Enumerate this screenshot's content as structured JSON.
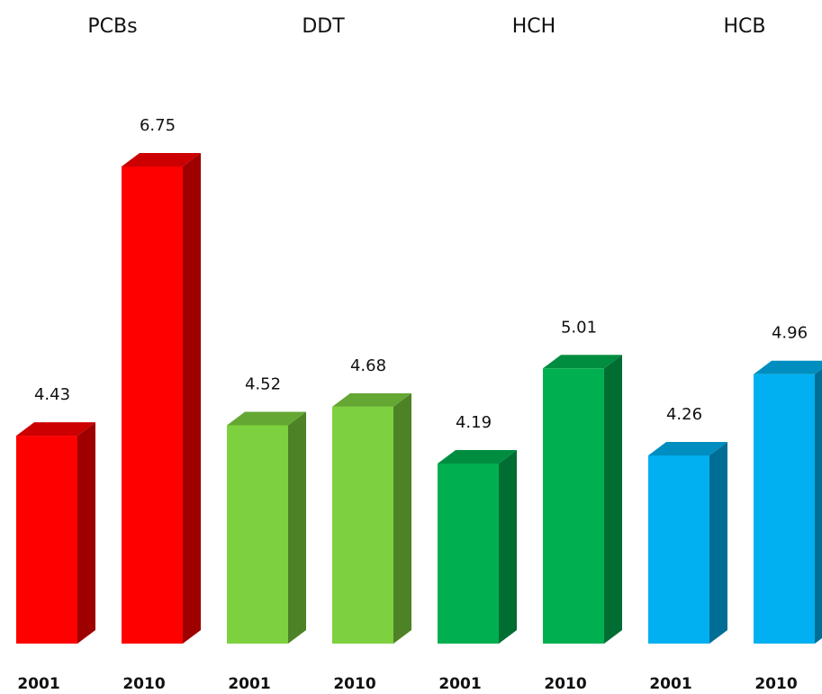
{
  "chart_data": {
    "type": "bar3d",
    "groups": [
      {
        "name": "PCBs",
        "color": "#ff0000",
        "categories": [
          "2001",
          "2010"
        ],
        "values": [
          4.43,
          6.75
        ]
      },
      {
        "name": "DDT",
        "color": "#7dd13e",
        "categories": [
          "2001",
          "2010"
        ],
        "values": [
          4.52,
          4.68
        ]
      },
      {
        "name": "HCH",
        "color": "#00b050",
        "categories": [
          "2001",
          "2010"
        ],
        "values": [
          4.19,
          5.01
        ]
      },
      {
        "name": "HCB",
        "color": "#00b0f0",
        "categories": [
          "2001",
          "2010"
        ],
        "values": [
          4.26,
          4.96
        ]
      }
    ]
  }
}
